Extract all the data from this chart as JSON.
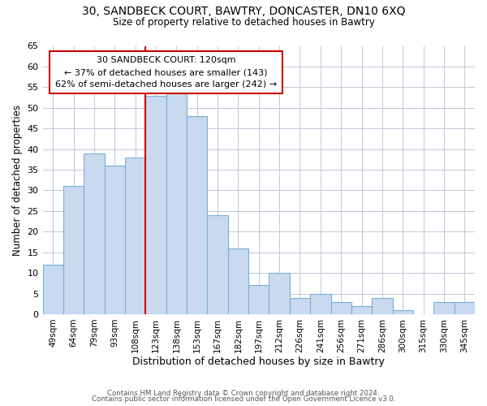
{
  "title_line1": "30, SANDBECK COURT, BAWTRY, DONCASTER, DN10 6XQ",
  "title_line2": "Size of property relative to detached houses in Bawtry",
  "xlabel": "Distribution of detached houses by size in Bawtry",
  "ylabel": "Number of detached properties",
  "footer_line1": "Contains HM Land Registry data © Crown copyright and database right 2024.",
  "footer_line2": "Contains public sector information licensed under the Open Government Licence v3.0.",
  "bar_labels": [
    "49sqm",
    "64sqm",
    "79sqm",
    "93sqm",
    "108sqm",
    "123sqm",
    "138sqm",
    "153sqm",
    "167sqm",
    "182sqm",
    "197sqm",
    "212sqm",
    "226sqm",
    "241sqm",
    "256sqm",
    "271sqm",
    "286sqm",
    "300sqm",
    "315sqm",
    "330sqm",
    "345sqm"
  ],
  "bar_values": [
    12,
    31,
    39,
    36,
    38,
    53,
    54,
    48,
    24,
    16,
    7,
    10,
    4,
    5,
    3,
    2,
    4,
    1,
    0,
    3,
    3
  ],
  "bar_color": "#c8d9f0",
  "bar_edge_color": "#7bafd4",
  "highlight_bar_index": 5,
  "highlight_line_color": "#cc0000",
  "annotation_title": "30 SANDBECK COURT: 120sqm",
  "annotation_line2": "← 37% of detached houses are smaller (143)",
  "annotation_line3": "62% of semi-detached houses are larger (242) →",
  "annotation_box_edge_color": "#cc0000",
  "annotation_box_face_color": "#ffffff",
  "ylim": [
    0,
    65
  ],
  "yticks": [
    0,
    5,
    10,
    15,
    20,
    25,
    30,
    35,
    40,
    45,
    50,
    55,
    60,
    65
  ],
  "background_color": "#ffffff",
  "grid_color": "#c0c8d8"
}
